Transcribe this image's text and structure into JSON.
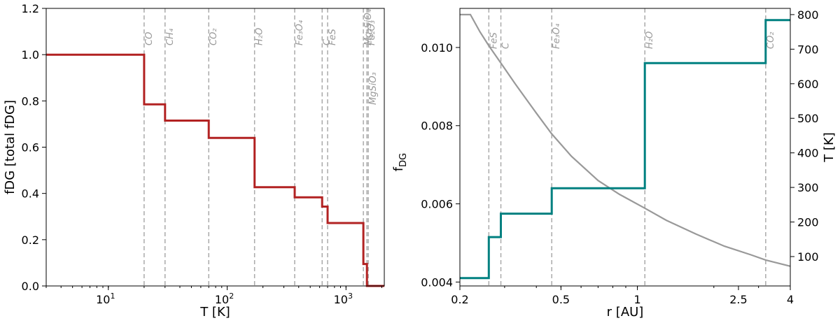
{
  "chart_data": [
    {
      "type": "line",
      "step": true,
      "xscale": "log",
      "xlabel": "T [K]",
      "ylabel": "fDG [total fDG]",
      "xlim": [
        3,
        2100
      ],
      "ylim": [
        0,
        1.2
      ],
      "xticks": [
        {
          "value": 10,
          "label": "10",
          "sup": "1"
        },
        {
          "value": 100,
          "label": "10",
          "sup": "2"
        },
        {
          "value": 1000,
          "label": "10",
          "sup": "3"
        }
      ],
      "yticks": [
        "0.0",
        "0.2",
        "0.4",
        "0.6",
        "0.8",
        "1.0",
        "1.2"
      ],
      "color": "#b22222",
      "series": [
        {
          "x": [
            3,
            20,
            20,
            30,
            30,
            70,
            70,
            170,
            170,
            370,
            370,
            630,
            630,
            700,
            700,
            1400,
            1400,
            1500,
            1500,
            2100
          ],
          "y": [
            1.0,
            1.0,
            0.785,
            0.785,
            0.715,
            0.715,
            0.64,
            0.64,
            0.427,
            0.427,
            0.383,
            0.383,
            0.343,
            0.343,
            0.272,
            0.272,
            0.095,
            0.095,
            0.0,
            0.0
          ]
        }
      ],
      "condensation_lines": [
        {
          "x": 20,
          "label": "CO",
          "pos": "top"
        },
        {
          "x": 30,
          "label": "CH₄",
          "pos": "top"
        },
        {
          "x": 70,
          "label": "CO₂",
          "pos": "top"
        },
        {
          "x": 170,
          "label": "H₂O",
          "pos": "top"
        },
        {
          "x": 370,
          "label": "Fe₃O₄",
          "pos": "top"
        },
        {
          "x": 630,
          "label": "C",
          "pos": "top"
        },
        {
          "x": 700,
          "label": "FeS",
          "pos": "top"
        },
        {
          "x": 1400,
          "label": "Mg₂SiO₄",
          "pos": "top"
        },
        {
          "x": 1500,
          "label": "Fe₂O₃",
          "pos": "top"
        },
        {
          "x": 1540,
          "label": "MgSiO₃",
          "pos": "low"
        }
      ]
    },
    {
      "type": "line",
      "step": true,
      "xscale": "log",
      "xlabel": "r [AU]",
      "ylabel": "f",
      "ylabel_sub": "DG",
      "ylabel_right": "T [K]",
      "xlim": [
        0.2,
        4
      ],
      "ylim": [
        0.0039,
        0.011
      ],
      "ylim_right": [
        15,
        818
      ],
      "xticks": [
        {
          "value": 0.2,
          "label": "0.2"
        },
        {
          "value": 0.5,
          "label": "0.5"
        },
        {
          "value": 1,
          "label": "1"
        },
        {
          "value": 2.5,
          "label": "2.5"
        },
        {
          "value": 4,
          "label": "4"
        }
      ],
      "yticks": [
        "0.004",
        "0.006",
        "0.008",
        "0.010"
      ],
      "yticks_right": [
        "100",
        "200",
        "300",
        "400",
        "500",
        "600",
        "700",
        "800"
      ],
      "series": [
        {
          "name": "fDG",
          "color": "#008080",
          "x": [
            0.2,
            0.26,
            0.26,
            0.29,
            0.29,
            0.46,
            0.46,
            1.07,
            1.07,
            3.2,
            3.2,
            4.0
          ],
          "y": [
            0.0041,
            0.0041,
            0.00515,
            0.00515,
            0.00575,
            0.00575,
            0.0064,
            0.0064,
            0.0096,
            0.0096,
            0.0107,
            0.0107
          ]
        },
        {
          "name": "T",
          "color": "#999999",
          "axis": "right",
          "x": [
            0.2,
            0.22,
            0.24,
            0.26,
            0.29,
            0.33,
            0.4,
            0.46,
            0.55,
            0.7,
            0.85,
            1.07,
            1.3,
            1.7,
            2.2,
            2.8,
            3.2,
            4.0
          ],
          "y": [
            800,
            800,
            750,
            710,
            660,
            600,
            515,
            455,
            390,
            320,
            280,
            240,
            205,
            165,
            130,
            105,
            90,
            72
          ]
        }
      ],
      "condensation_lines": [
        {
          "x": 0.26,
          "label": "FeS"
        },
        {
          "x": 0.29,
          "label": "C"
        },
        {
          "x": 0.46,
          "label": "Fe₃O₄"
        },
        {
          "x": 1.07,
          "label": "H₂O"
        },
        {
          "x": 3.2,
          "label": "CO₂"
        }
      ]
    }
  ]
}
